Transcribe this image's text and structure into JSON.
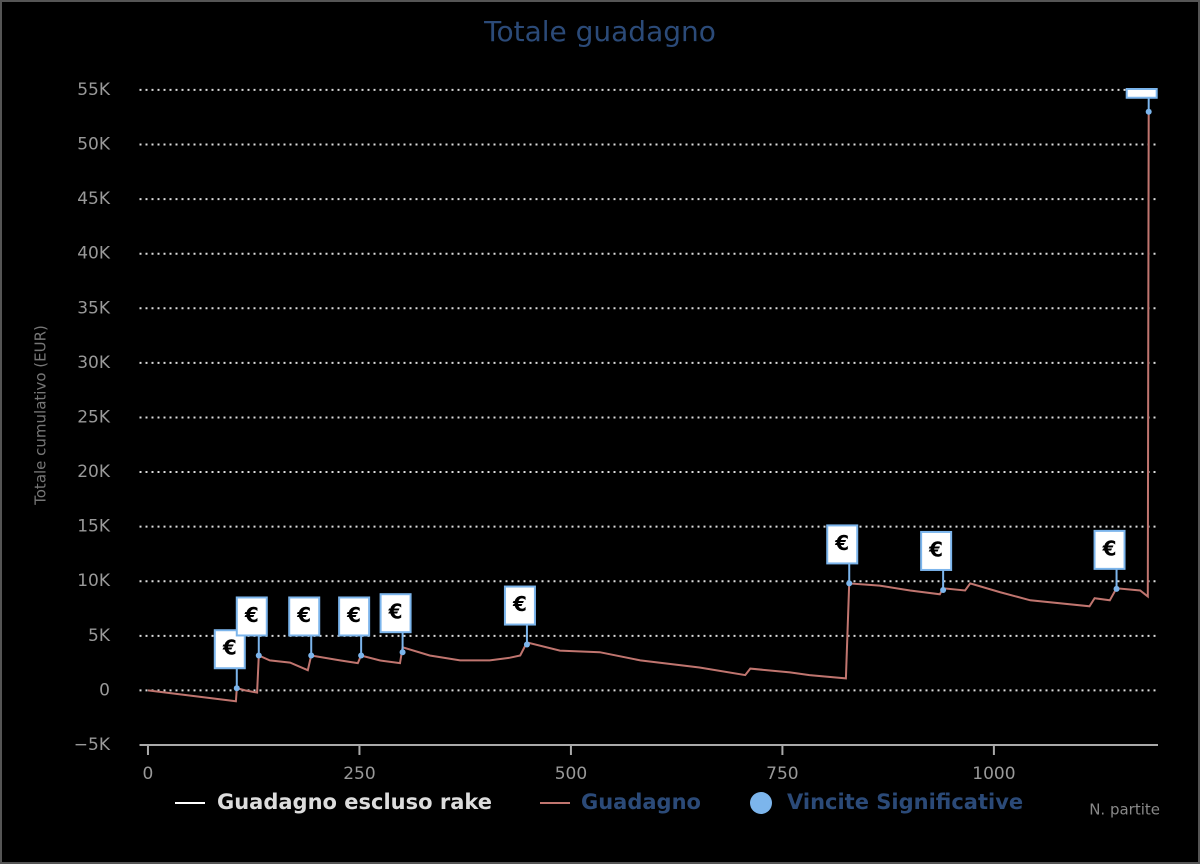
{
  "chart_data": {
    "type": "line",
    "title": "Totale guadagno",
    "ylabel": "Totale cumulativo (EUR)",
    "xlabel": "N. partite",
    "xlim": [
      -10,
      1194
    ],
    "ylim": [
      -5000,
      56000
    ],
    "xticks": [
      0,
      250,
      500,
      750,
      1000
    ],
    "yticks": [
      {
        "value": -5000,
        "label": "−5K"
      },
      0,
      {
        "value": 5000,
        "label": "5K"
      },
      {
        "value": 10000,
        "label": "10K"
      },
      {
        "value": 15000,
        "label": "15K"
      },
      {
        "value": 20000,
        "label": "20K"
      },
      {
        "value": 25000,
        "label": "25K"
      },
      {
        "value": 30000,
        "label": "30K"
      },
      {
        "value": 35000,
        "label": "35K"
      },
      {
        "value": 40000,
        "label": "40K"
      },
      {
        "value": 45000,
        "label": "45K"
      },
      {
        "value": 50000,
        "label": "50K"
      },
      {
        "value": 55000,
        "label": "55K"
      }
    ],
    "grid": true,
    "series": [
      {
        "name": "Guadagno escluso rake",
        "color": "#ffffff",
        "visible": false
      },
      {
        "name": "Guadagno",
        "color": "#c0756f",
        "x": [
          0,
          104,
          105,
          115,
          129,
          131,
          144,
          168,
          189,
          193,
          227,
          248,
          252,
          274,
          298,
          301,
          333,
          369,
          404,
          428,
          440,
          448,
          487,
          534,
          582,
          652,
          706,
          712,
          759,
          782,
          825,
          829,
          865,
          901,
          936,
          940,
          966,
          972,
          1007,
          1043,
          1113,
          1119,
          1137,
          1145,
          1173,
          1182,
          1183
        ],
        "values": [
          0,
          -1000,
          200,
          0,
          -200,
          3200,
          2750,
          2550,
          1850,
          3200,
          2750,
          2500,
          3200,
          2750,
          2500,
          3950,
          3200,
          2750,
          2750,
          3000,
          3200,
          4400,
          3650,
          3500,
          2750,
          2100,
          1400,
          2000,
          1650,
          1400,
          1100,
          9800,
          9600,
          9150,
          8800,
          9350,
          9150,
          9800,
          9000,
          8250,
          7700,
          8450,
          8250,
          9350,
          9150,
          8600,
          53150
        ]
      }
    ],
    "markers": {
      "name": "Vincite Significative",
      "color": "#7cb5ec",
      "flag_text": "€",
      "x": [
        105,
        131,
        193,
        252,
        301,
        448,
        829,
        940,
        1145,
        1183
      ],
      "values": [
        200,
        3200,
        3200,
        3200,
        3500,
        4200,
        9800,
        9200,
        9300,
        53000
      ]
    }
  }
}
